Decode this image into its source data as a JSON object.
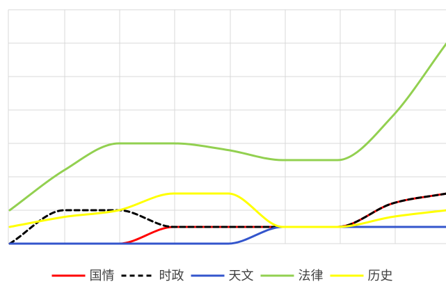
{
  "chart_data": {
    "type": "line",
    "smooth": true,
    "title": "",
    "xlabel": "",
    "ylabel": "",
    "grid": true,
    "legend": "bottom",
    "x": [
      1,
      2,
      3,
      4,
      5,
      6,
      7,
      8,
      9
    ],
    "ylim": [
      0,
      7
    ],
    "series": [
      {
        "name": "国情",
        "color": "#ff0000",
        "dash": false,
        "values": [
          0,
          0,
          0,
          0.5,
          0.5,
          0.5,
          0.5,
          1.2,
          1.5
        ]
      },
      {
        "name": "时政",
        "color": "#000000",
        "dash": true,
        "values": [
          0,
          1,
          1,
          0.5,
          0.5,
          0.5,
          0.5,
          1.2,
          1.5
        ]
      },
      {
        "name": "天文",
        "color": "#3355cc",
        "dash": false,
        "values": [
          0,
          0,
          0,
          0,
          0,
          0.5,
          0.5,
          0.5,
          0.5
        ]
      },
      {
        "name": "法律",
        "color": "#92d050",
        "dash": false,
        "values": [
          1,
          2.2,
          3,
          3,
          2.8,
          2.5,
          2.5,
          3.8,
          6
        ]
      },
      {
        "name": "历史",
        "color": "#ffff00",
        "dash": false,
        "values": [
          0.5,
          0.8,
          1,
          1.5,
          1.5,
          0.5,
          0.5,
          0.8,
          1
        ]
      }
    ]
  }
}
